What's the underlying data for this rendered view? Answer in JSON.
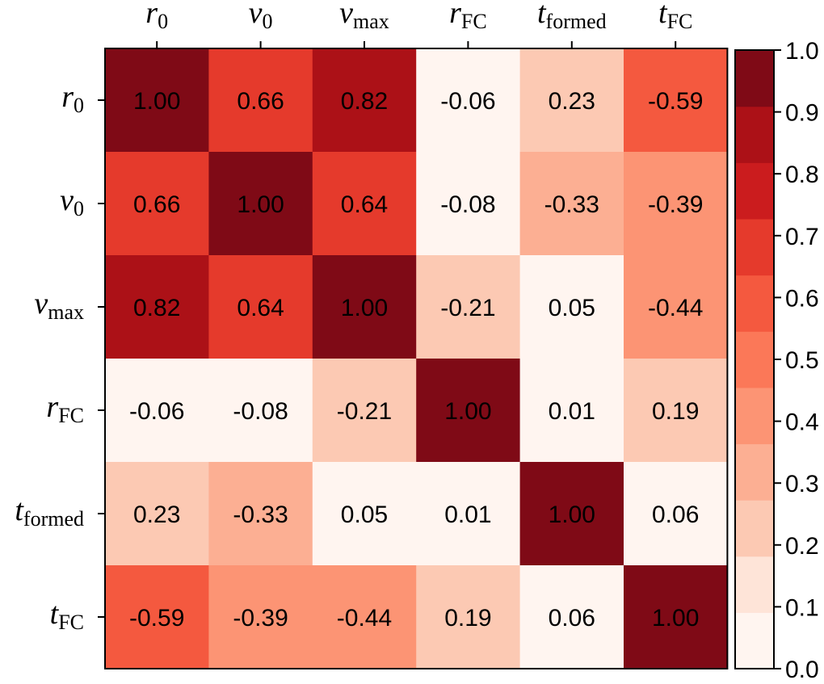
{
  "chart_data": {
    "type": "heatmap",
    "title": "",
    "variables": [
      {
        "main": "r",
        "sub": "0"
      },
      {
        "main": "v",
        "sub": "0"
      },
      {
        "main": "v",
        "sub": "max"
      },
      {
        "main": "r",
        "sub": "FC"
      },
      {
        "main": "t",
        "sub": "formed"
      },
      {
        "main": "t",
        "sub": "FC"
      }
    ],
    "values": [
      [
        1.0,
        0.66,
        0.82,
        -0.06,
        0.23,
        -0.59
      ],
      [
        0.66,
        1.0,
        0.64,
        -0.08,
        -0.33,
        -0.39
      ],
      [
        0.82,
        0.64,
        1.0,
        -0.21,
        0.05,
        -0.44
      ],
      [
        -0.06,
        -0.08,
        -0.21,
        1.0,
        0.01,
        0.19
      ],
      [
        0.23,
        -0.33,
        0.05,
        0.01,
        1.0,
        0.06
      ],
      [
        -0.59,
        -0.39,
        -0.44,
        0.19,
        0.06,
        1.0
      ]
    ],
    "labels": [
      [
        "1.00",
        "0.66",
        "0.82",
        "-0.06",
        "0.23",
        "-0.59"
      ],
      [
        "0.66",
        "1.00",
        "0.64",
        "-0.08",
        "-0.33",
        "-0.39"
      ],
      [
        "0.82",
        "0.64",
        "1.00",
        "-0.21",
        "0.05",
        "-0.44"
      ],
      [
        "-0.06",
        "-0.08",
        "-0.21",
        "1.00",
        "0.01",
        "0.19"
      ],
      [
        "0.23",
        "-0.33",
        "0.05",
        "0.01",
        "1.00",
        "0.06"
      ],
      [
        "-0.59",
        "-0.39",
        "-0.44",
        "0.19",
        "0.06",
        "1.00"
      ]
    ],
    "color_mapping": "absolute value",
    "colorbar": {
      "range": [
        0.0,
        1.0
      ],
      "ticks": [
        "0.0",
        "0.1",
        "0.2",
        "0.3",
        "0.4",
        "0.5",
        "0.6",
        "0.7",
        "0.8",
        "0.9",
        "1.0"
      ],
      "levels": 11,
      "colors": [
        "#fff5f0",
        "#fee4d8",
        "#fcc9b3",
        "#fcaf93",
        "#fc9474",
        "#fb7858",
        "#f4593f",
        "#e53a2c",
        "#cb1c1e",
        "#ac1117",
        "#7f0a16"
      ]
    },
    "colormap": "Reds",
    "x_axis_position": "top",
    "y_axis_position": "left",
    "colorbar_position": "right"
  }
}
